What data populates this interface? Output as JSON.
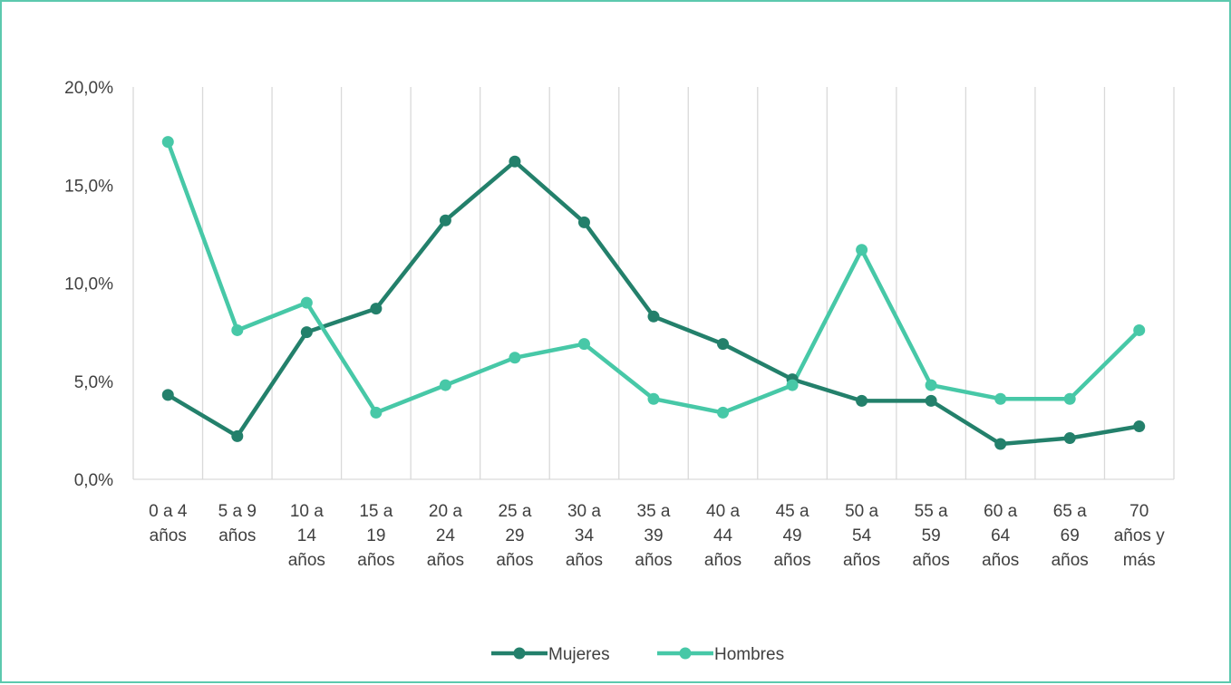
{
  "chart_data": {
    "type": "line",
    "title": "",
    "xlabel": "",
    "ylabel": "",
    "categories": [
      [
        "0 a 4",
        "años"
      ],
      [
        "5 a 9",
        "años"
      ],
      [
        "10 a",
        "14",
        "años"
      ],
      [
        "15 a",
        "19",
        "años"
      ],
      [
        "20 a",
        "24",
        "años"
      ],
      [
        "25 a",
        "29",
        "años"
      ],
      [
        "30 a",
        "34",
        "años"
      ],
      [
        "35 a",
        "39",
        "años"
      ],
      [
        "40 a",
        "44",
        "años"
      ],
      [
        "45 a",
        "49",
        "años"
      ],
      [
        "50 a",
        "54",
        "años"
      ],
      [
        "55 a",
        "59",
        "años"
      ],
      [
        "60 a",
        "64",
        "años"
      ],
      [
        "65 a",
        "69",
        "años"
      ],
      [
        "70",
        "años y",
        "más"
      ]
    ],
    "series": [
      {
        "name": "Mujeres",
        "color": "#23806b",
        "values": [
          4.3,
          2.2,
          7.5,
          8.7,
          13.2,
          16.2,
          13.1,
          8.3,
          6.9,
          5.1,
          4.0,
          4.0,
          1.8,
          2.1,
          2.7
        ]
      },
      {
        "name": "Hombres",
        "color": "#47c8a7",
        "values": [
          17.2,
          7.6,
          9.0,
          3.4,
          4.8,
          6.2,
          6.9,
          4.1,
          3.4,
          4.8,
          11.7,
          4.8,
          4.1,
          4.1,
          7.6
        ]
      }
    ],
    "y_ticks": [
      "0,0%",
      "5,0%",
      "10,0%",
      "15,0%",
      "20,0%"
    ],
    "ylim": [
      0,
      20
    ],
    "grid": "vertical",
    "legend": "bottom-center"
  }
}
